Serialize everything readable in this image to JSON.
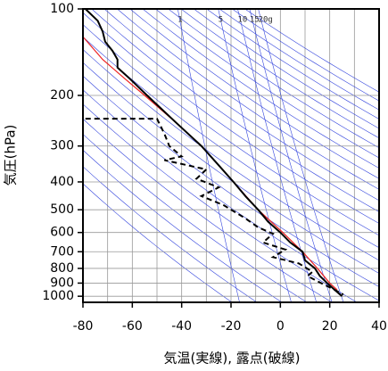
{
  "chart_data": {
    "type": "emagram",
    "xlabel": "気温(実線), 露点(破線)",
    "ylabel": "気圧(hPa)",
    "xlim": [
      -80,
      40
    ],
    "xticks": [
      -80,
      -60,
      -40,
      -20,
      0,
      20,
      40
    ],
    "ylim": [
      1050,
      100
    ],
    "yticks": [
      100,
      200,
      300,
      400,
      500,
      600,
      700,
      800,
      900,
      1000
    ],
    "yscale": "log",
    "grid": true,
    "isotherms": [
      -80,
      -70,
      -60,
      -50,
      -40,
      -30,
      -20,
      -10,
      0,
      10,
      20,
      30,
      40
    ],
    "isotherm_color": "#999999",
    "reference_color": "#3344dd",
    "dry_adiabats": [
      250,
      260,
      270,
      280,
      290,
      300,
      310,
      320,
      330,
      340,
      350,
      360,
      370,
      380,
      390,
      400,
      410,
      420,
      430,
      440,
      450,
      460,
      470,
      480,
      490,
      500
    ],
    "mixing_ratio_lines": [
      1,
      5,
      10,
      15,
      {
        "value": 20,
        "label": "20g"
      }
    ],
    "series": [
      {
        "color": "#ee2222",
        "dash": false,
        "pressure": [
          125,
          150,
          175,
          200,
          250,
          300,
          400,
          500,
          600,
          700,
          800,
          900,
          950
        ],
        "temperature": [
          -80,
          -72,
          -63,
          -55,
          -42,
          -32,
          -19,
          -9,
          1,
          9,
          15,
          20,
          23
        ]
      },
      {
        "color": "#000000",
        "dash": false,
        "pressure": [
          100,
          110,
          120,
          130,
          140,
          150,
          160,
          175,
          200,
          250,
          300,
          350,
          400,
          450,
          500,
          550,
          600,
          650,
          700,
          750,
          800,
          850,
          900,
          950,
          1000
        ],
        "temperature": [
          -79,
          -74,
          -72,
          -71,
          -68,
          -66,
          -66,
          -61,
          -54,
          -42,
          -32,
          -25,
          -19,
          -14,
          -9,
          -5,
          0,
          4,
          9,
          10,
          14,
          16,
          19,
          22,
          25
        ]
      },
      {
        "color": "#000000",
        "dash": true,
        "pressure": [
          241,
          241,
          272,
          300,
          326,
          336,
          362,
          390,
          418,
          448,
          482,
          537,
          576,
          606,
          650,
          688,
          731,
          769,
          822,
          851,
          900,
          950,
          986
        ],
        "temperature": [
          -79,
          -50,
          -47,
          -45,
          -40,
          -47,
          -30,
          -34,
          -25,
          -32,
          -23,
          -14,
          -9,
          -3,
          -7,
          2,
          -3,
          7.5,
          13,
          11,
          16.5,
          22,
          25.5
        ]
      }
    ]
  }
}
